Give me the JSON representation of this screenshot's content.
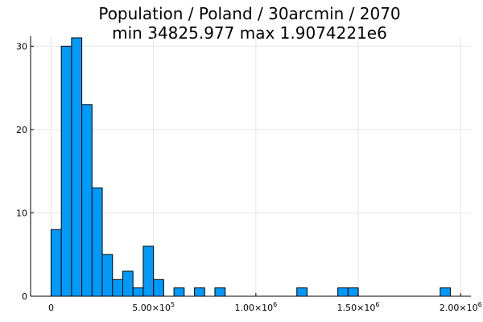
{
  "chart_data": {
    "type": "bar",
    "title_line1": "Population / Poland / 30arcmin / 2070",
    "title_line2": "min 34825.977  max 1.9074221e6",
    "xlabel": "",
    "ylabel": "",
    "bin_width": 50000,
    "bins": [
      {
        "start": 0,
        "count": 8
      },
      {
        "start": 50000,
        "count": 30
      },
      {
        "start": 100000,
        "count": 31
      },
      {
        "start": 150000,
        "count": 23
      },
      {
        "start": 200000,
        "count": 13
      },
      {
        "start": 250000,
        "count": 5
      },
      {
        "start": 300000,
        "count": 2
      },
      {
        "start": 350000,
        "count": 3
      },
      {
        "start": 400000,
        "count": 1
      },
      {
        "start": 450000,
        "count": 6
      },
      {
        "start": 500000,
        "count": 2
      },
      {
        "start": 550000,
        "count": 0
      },
      {
        "start": 600000,
        "count": 1
      },
      {
        "start": 650000,
        "count": 0
      },
      {
        "start": 700000,
        "count": 1
      },
      {
        "start": 750000,
        "count": 0
      },
      {
        "start": 800000,
        "count": 1
      },
      {
        "start": 1200000,
        "count": 1
      },
      {
        "start": 1400000,
        "count": 1
      },
      {
        "start": 1450000,
        "count": 1
      },
      {
        "start": 1900000,
        "count": 1
      }
    ],
    "xlim": [
      -100000,
      2050000
    ],
    "ylim": [
      0,
      31
    ],
    "xticks": [
      {
        "value": 0,
        "mantissa": "0",
        "exp": ""
      },
      {
        "value": 500000,
        "mantissa": "5.00×10",
        "exp": "5"
      },
      {
        "value": 1000000,
        "mantissa": "1.00×10",
        "exp": "6"
      },
      {
        "value": 1500000,
        "mantissa": "1.50×10",
        "exp": "6"
      },
      {
        "value": 2000000,
        "mantissa": "2.00×10",
        "exp": "6"
      }
    ],
    "yticks": [
      0,
      10,
      20,
      30
    ],
    "grid": true,
    "legend": "none",
    "colors": {
      "bar_fill": "#009af9",
      "bar_stroke": "#000000",
      "grid": "#e5e5e5",
      "axis": "#000000"
    }
  }
}
